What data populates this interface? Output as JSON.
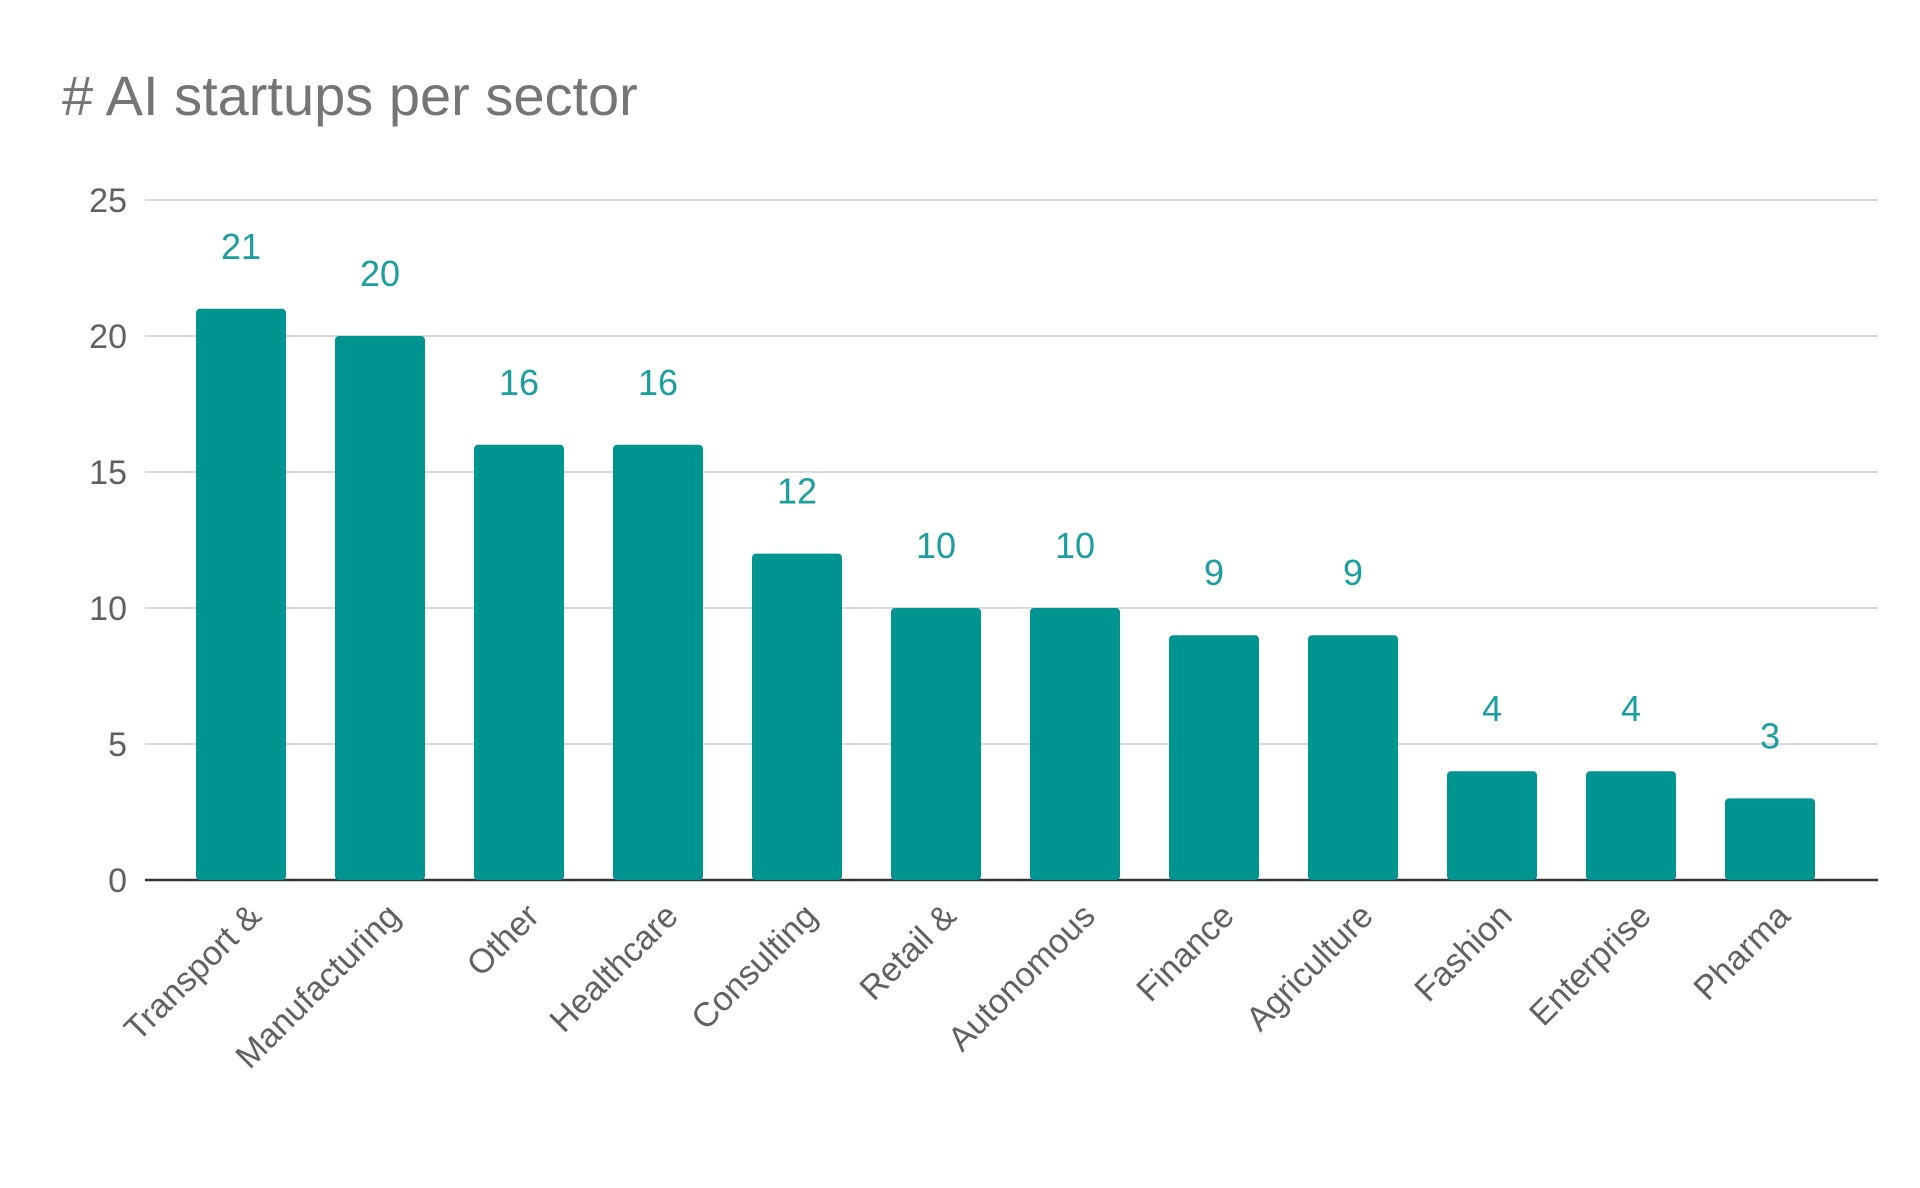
{
  "chart_data": {
    "type": "bar",
    "title": "# AI startups per sector",
    "categories": [
      "Transport &",
      "Manufacturing",
      "Other",
      "Healthcare",
      "Consulting",
      "Retail &",
      "Autonomous",
      "Finance",
      "Agriculture",
      "Fashion",
      "Enterprise",
      "Pharma"
    ],
    "values": [
      21,
      20,
      16,
      16,
      12,
      10,
      10,
      9,
      9,
      4,
      4,
      3
    ],
    "xlabel": "",
    "ylabel": "",
    "ylim": [
      0,
      25
    ],
    "yticks": [
      0,
      5,
      10,
      15,
      20,
      25
    ],
    "grid": true,
    "legend": "none",
    "bar_color": "#009491",
    "label_color": "#1a9e9e"
  }
}
